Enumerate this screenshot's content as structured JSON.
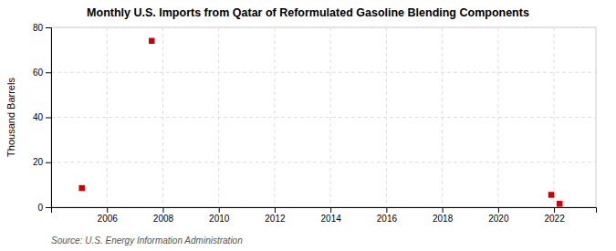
{
  "chart_data": {
    "type": "scatter",
    "title": "Monthly U.S. Imports from Qatar of Reformulated Gasoline Blending Components",
    "ylabel": "Thousand Barrels",
    "source": "Source: U.S. Energy Information Administration",
    "x": [
      2005.1,
      2007.6,
      2021.9,
      2022.2
    ],
    "values": [
      8.5,
      74.0,
      5.5,
      1.5
    ],
    "color": "#cc0000",
    "marker": "square",
    "xlim": [
      2004.0,
      2023.5
    ],
    "ylim": [
      0,
      80
    ],
    "xticks": [
      2006,
      2008,
      2010,
      2012,
      2014,
      2016,
      2018,
      2020,
      2022
    ],
    "yticks": [
      0,
      20,
      40,
      60,
      80
    ],
    "grid": true
  }
}
